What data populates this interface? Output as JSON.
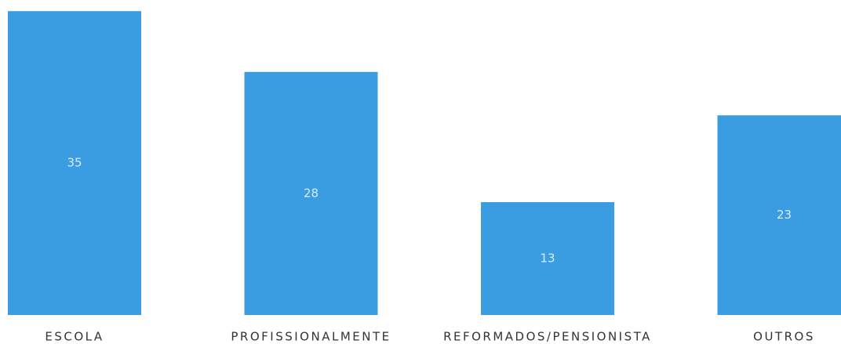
{
  "chart_data": {
    "type": "bar",
    "categories": [
      "ESCOLA",
      "PROFISSIONALMENTE",
      "REFORMADOS/PENSIONISTA",
      "OUTROS"
    ],
    "values": [
      35,
      28,
      13,
      23
    ],
    "color": "#3b9de1"
  }
}
